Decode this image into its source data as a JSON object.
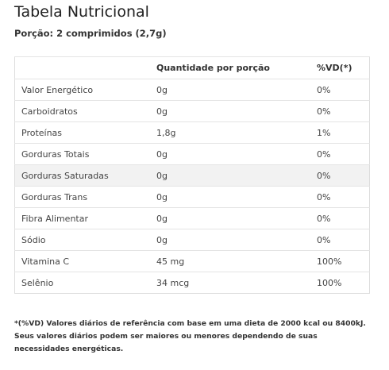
{
  "header": {
    "title": "Tabela Nutricional",
    "subtitle": "Porção: 2 comprimidos (2,7g)"
  },
  "table": {
    "columns": [
      "",
      "Quantidade por porção",
      "%VD(*)"
    ],
    "rows": [
      [
        "Valor Energético",
        "0g",
        "0%"
      ],
      [
        "Carboidratos",
        "0g",
        "0%"
      ],
      [
        "Proteínas",
        "1,8g",
        "1%"
      ],
      [
        "Gorduras Totais",
        "0g",
        "0%"
      ],
      [
        "Gorduras Saturadas",
        "0g",
        "0%"
      ],
      [
        "Gorduras Trans",
        "0g",
        "0%"
      ],
      [
        "Fibra Alimentar",
        "0g",
        "0%"
      ],
      [
        "Sódio",
        "0g",
        "0%"
      ],
      [
        "Vitamina C",
        "45 mg",
        "100%"
      ],
      [
        "Selênio",
        "34 mcg",
        "100%"
      ]
    ]
  },
  "footnote": "*(%VD) Valores diários de referência com base em uma dieta de 2000 kcal ou 8400kJ. Seus valores diários podem ser maiores ou menores dependendo de suas necessidades energéticas."
}
